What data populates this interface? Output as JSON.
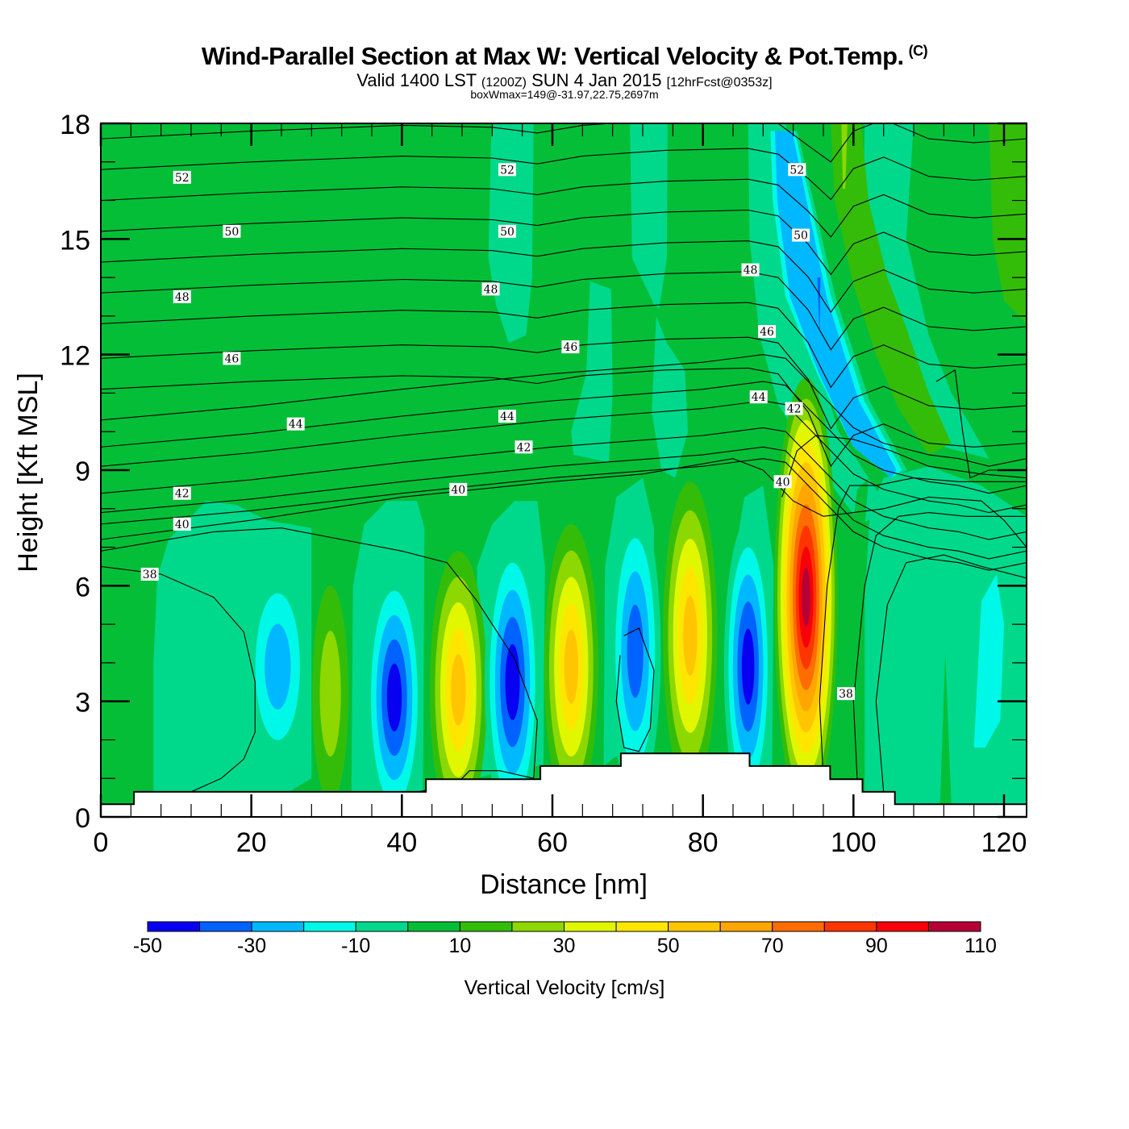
{
  "header": {
    "title": "Wind-Parallel Section at Max W: Vertical Velocity & Pot.Temp.",
    "copyright": "(C)",
    "valid_prefix": "Valid 1400 LST",
    "valid_utc": "(1200Z)",
    "valid_date": "SUN 4 Jan 2015",
    "forecast": "[12hrFcst@0353z]",
    "box_wmax": "boxWmax=149@-31.97,22.75,2697m"
  },
  "colors": {
    "levels": [
      "#0800F0",
      "#0062FF",
      "#00B8FF",
      "#00F8E8",
      "#00D98C",
      "#05BE38",
      "#33BD09",
      "#8CD800",
      "#E1F700",
      "#FFE600",
      "#FFC600",
      "#FFA600",
      "#FF6C00",
      "#FF3500",
      "#F8000A",
      "#B50036"
    ],
    "terrain": "#FFFFFF",
    "contour": "#000000"
  },
  "chart_data": {
    "type": "heatmap",
    "title": "Wind-Parallel Section at Max W: Vertical Velocity & Pot.Temp.",
    "xlabel": "Distance [nm]",
    "ylabel": "Height [Kft MSL]",
    "xlim": [
      0,
      123
    ],
    "ylim": [
      0,
      18
    ],
    "x_ticks": [
      "0",
      "20",
      "40",
      "60",
      "80",
      "100",
      "120"
    ],
    "x_tick_values": [
      0,
      20,
      40,
      60,
      80,
      100,
      120
    ],
    "y_ticks": [
      "0",
      "3",
      "6",
      "9",
      "12",
      "15",
      "18"
    ],
    "y_tick_values": [
      0,
      3,
      6,
      9,
      12,
      15,
      18
    ],
    "colorbar": {
      "label": "Vertical Velocity [cm/s]",
      "bounds": [
        -50,
        -40,
        -30,
        -20,
        -10,
        0,
        10,
        20,
        30,
        40,
        50,
        60,
        70,
        80,
        90,
        100,
        110
      ],
      "tick_labels": [
        "-50",
        "-30",
        "-10",
        "10",
        "30",
        "50",
        "70",
        "90",
        "110"
      ],
      "tick_values": [
        -50,
        -30,
        -10,
        10,
        30,
        50,
        70,
        90,
        110
      ]
    },
    "terrain_profile_kft": [
      {
        "x0": 0,
        "x1": 4.4,
        "h": 0.33
      },
      {
        "x0": 4.4,
        "x1": 43.2,
        "h": 0.65
      },
      {
        "x0": 43.2,
        "x1": 58.4,
        "h": 0.98
      },
      {
        "x0": 58.4,
        "x1": 69.1,
        "h": 1.32
      },
      {
        "x0": 69.1,
        "x1": 86.2,
        "h": 1.65
      },
      {
        "x0": 86.2,
        "x1": 96.9,
        "h": 1.32
      },
      {
        "x0": 96.9,
        "x1": 101.2,
        "h": 0.98
      },
      {
        "x0": 101.2,
        "x1": 105.5,
        "h": 0.65
      },
      {
        "x0": 105.5,
        "x1": 123,
        "h": 0.33
      }
    ],
    "w_cells": [
      {
        "x": 23.5,
        "z": 3.8,
        "min_bin": -30,
        "sign": "down"
      },
      {
        "x": 30.5,
        "z": 3.0,
        "min_bin": 20,
        "sign": "up"
      },
      {
        "x": 39.0,
        "z": 3.0,
        "min_bin": -50,
        "sign": "down"
      },
      {
        "x": 47.5,
        "z": 3.2,
        "min_bin": 50,
        "sign": "up"
      },
      {
        "x": 54.5,
        "z": 3.5,
        "min_bin": -50,
        "sign": "down"
      },
      {
        "x": 62.0,
        "z": 3.8,
        "min_bin": 50,
        "sign": "up"
      },
      {
        "x": 71.0,
        "z": 4.3,
        "min_bin": -40,
        "sign": "down"
      },
      {
        "x": 78.0,
        "z": 4.8,
        "min_bin": 50,
        "sign": "up"
      },
      {
        "x": 86.0,
        "z": 3.8,
        "min_bin": -50,
        "sign": "down"
      },
      {
        "x": 93.5,
        "z": 5.8,
        "min_bin": 100,
        "sign": "up"
      },
      {
        "x": 95.5,
        "z": 13.0,
        "min_bin": -40,
        "sign": "down"
      }
    ],
    "isentrope_labels": [
      {
        "text": "52",
        "x": 10.8,
        "z": 16.6
      },
      {
        "text": "52",
        "x": 54.0,
        "z": 16.8
      },
      {
        "text": "52",
        "x": 92.5,
        "z": 16.8
      },
      {
        "text": "50",
        "x": 17.4,
        "z": 15.2
      },
      {
        "text": "50",
        "x": 54.0,
        "z": 15.2
      },
      {
        "text": "50",
        "x": 93.0,
        "z": 15.1
      },
      {
        "text": "48",
        "x": 10.8,
        "z": 13.5
      },
      {
        "text": "48",
        "x": 51.8,
        "z": 13.7
      },
      {
        "text": "48",
        "x": 86.3,
        "z": 14.2
      },
      {
        "text": "46",
        "x": 17.4,
        "z": 11.9
      },
      {
        "text": "46",
        "x": 62.4,
        "z": 12.2
      },
      {
        "text": "46",
        "x": 88.5,
        "z": 12.6
      },
      {
        "text": "44",
        "x": 25.9,
        "z": 10.2
      },
      {
        "text": "44",
        "x": 54.0,
        "z": 10.4
      },
      {
        "text": "44",
        "x": 87.4,
        "z": 10.9
      },
      {
        "text": "42",
        "x": 10.8,
        "z": 8.4
      },
      {
        "text": "42",
        "x": 56.2,
        "z": 9.6
      },
      {
        "text": "42",
        "x": 92.1,
        "z": 10.6
      },
      {
        "text": "40",
        "x": 10.8,
        "z": 7.6
      },
      {
        "text": "40",
        "x": 47.5,
        "z": 8.5
      },
      {
        "text": "40",
        "x": 90.6,
        "z": 8.7
      },
      {
        "text": "38",
        "x": 6.5,
        "z": 6.3
      },
      {
        "text": "38",
        "x": 99.0,
        "z": 3.2
      }
    ]
  }
}
